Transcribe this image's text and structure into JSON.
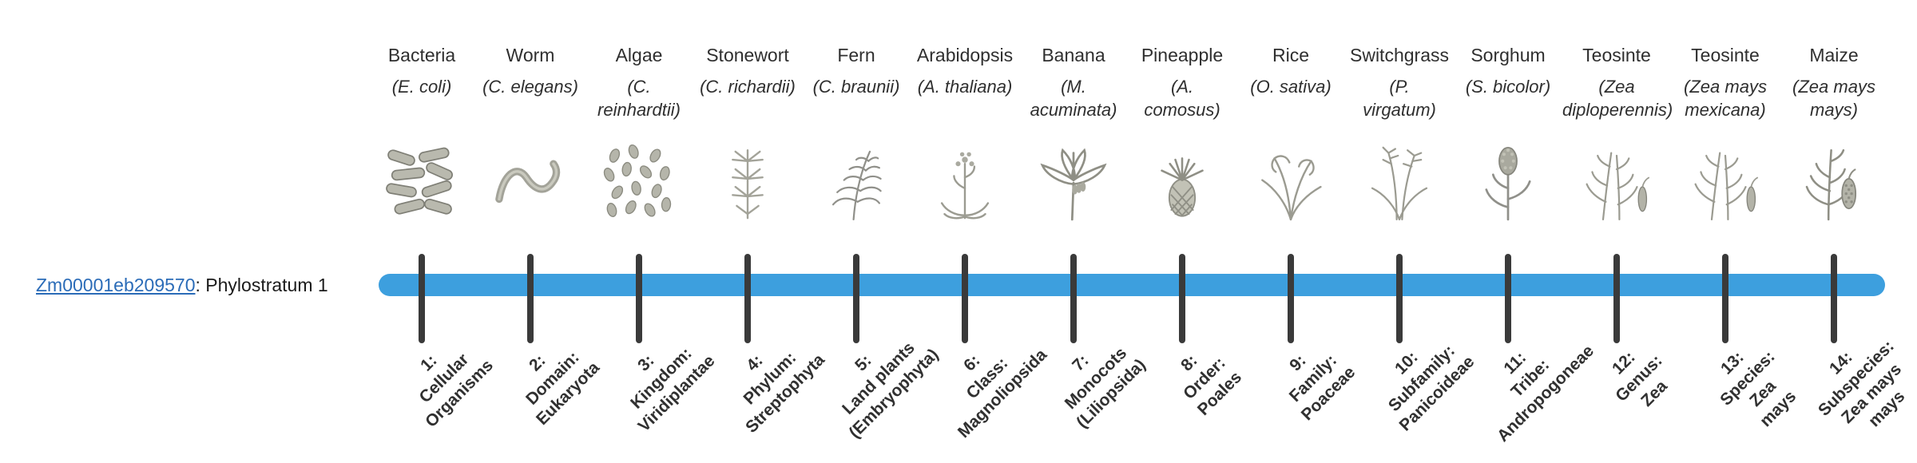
{
  "page": {
    "background": "#ffffff"
  },
  "gene": {
    "id": "Zm00001eb209570",
    "suffix": ": Phylostratum 1",
    "link_color": "#2b6cb8"
  },
  "timeline": {
    "bar_color": "#3d9fde",
    "tick_color": "#3a3a3a"
  },
  "columns": [
    {
      "name": "Bacteria",
      "species": "(E. coli)",
      "icon": "bacteria-icon",
      "stratum_label": "1:\nCellular\nOrganisms"
    },
    {
      "name": "Worm",
      "species": "(C. elegans)",
      "icon": "worm-icon",
      "stratum_label": "2:\nDomain:\nEukaryota"
    },
    {
      "name": "Algae",
      "species": "(C.\nreinhardtii)",
      "icon": "algae-icon",
      "stratum_label": "3:\nKingdom:\nViridiplantae"
    },
    {
      "name": "Stonewort",
      "species": "(C. richardii)",
      "icon": "stonewort-icon",
      "stratum_label": "4:\nPhylum:\nStreptophyta"
    },
    {
      "name": "Fern",
      "species": "(C. braunii)",
      "icon": "fern-icon",
      "stratum_label": "5:\nLand plants\n(Embryophyta)"
    },
    {
      "name": "Arabidopsis",
      "species": "(A. thaliana)",
      "icon": "arabidopsis-icon",
      "stratum_label": "6:\nClass:\nMagnoliopsida"
    },
    {
      "name": "Banana",
      "species": "(M.\nacuminata)",
      "icon": "banana-icon",
      "stratum_label": "7:\nMonocots\n(Liliopsida)"
    },
    {
      "name": "Pineapple",
      "species": "(A.\ncomosus)",
      "icon": "pineapple-icon",
      "stratum_label": "8:\nOrder:\nPoales"
    },
    {
      "name": "Rice",
      "species": "(O. sativa)",
      "icon": "rice-icon",
      "stratum_label": "9:\nFamily:\nPoaceae"
    },
    {
      "name": "Switchgrass",
      "species": "(P.\nvirgatum)",
      "icon": "switchgrass-icon",
      "stratum_label": "10:\nSubfamily:\nPanicoideae"
    },
    {
      "name": "Sorghum",
      "species": "(S. bicolor)",
      "icon": "sorghum-icon",
      "stratum_label": "11:\nTribe:\nAndropogoneae"
    },
    {
      "name": "Teosinte",
      "species": "(Zea\ndiploperennis)",
      "icon": "teosinte-icon",
      "stratum_label": "12:\nGenus:\nZea"
    },
    {
      "name": "Teosinte",
      "species": "(Zea mays\nmexicana)",
      "icon": "teosinte-icon",
      "stratum_label": "13:\nSpecies:\nZea\nmays"
    },
    {
      "name": "Maize",
      "species": "(Zea mays\nmays)",
      "icon": "maize-icon",
      "stratum_label": "14:\nSubspecies:\nZea mays\nmays"
    }
  ]
}
